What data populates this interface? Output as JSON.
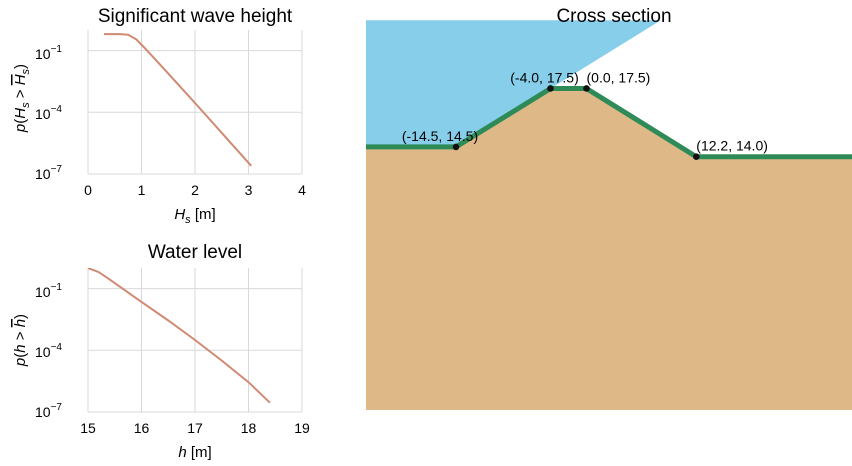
{
  "chart_data": [
    {
      "type": "line",
      "title": "Significant wave height",
      "xlabel": "H_s [m]",
      "ylabel": "p(H_s > Ĥ_s)",
      "xlim": [
        0,
        4
      ],
      "ylim_exp": [
        -7,
        0
      ],
      "yscale": "log",
      "grid": true,
      "x_ticks": [
        "0",
        "1",
        "2",
        "3",
        "4"
      ],
      "y_ticks": [
        "10^-1",
        "10^-4",
        "10^-7"
      ],
      "line_color": "#d08a74",
      "series": [
        {
          "x": [
            0.3,
            0.6,
            0.75,
            0.9,
            1.05,
            1.3,
            1.6,
            2.0,
            2.5,
            3.05
          ],
          "log10_y": [
            -0.2,
            -0.2,
            -0.23,
            -0.45,
            -0.85,
            -1.55,
            -2.4,
            -3.55,
            -5.0,
            -6.6
          ]
        }
      ]
    },
    {
      "type": "line",
      "title": "Water level",
      "xlabel": "h [m]",
      "ylabel": "p(h > h̄)",
      "xlim": [
        15,
        19
      ],
      "ylim_exp": [
        -7,
        0
      ],
      "yscale": "log",
      "grid": true,
      "x_ticks": [
        "15",
        "16",
        "17",
        "18",
        "19"
      ],
      "y_ticks": [
        "10^-1",
        "10^-4",
        "10^-7"
      ],
      "line_color": "#d08a74",
      "series": [
        {
          "x": [
            15.0,
            15.2,
            15.4,
            15.7,
            16.0,
            16.5,
            17.0,
            17.5,
            18.0,
            18.4
          ],
          "log10_y": [
            0.0,
            -0.2,
            -0.55,
            -1.1,
            -1.65,
            -2.55,
            -3.5,
            -4.5,
            -5.55,
            -6.55
          ]
        }
      ]
    },
    {
      "type": "area",
      "title": "Cross section",
      "xlim": [
        -24.5,
        29.5
      ],
      "ylim": [
        1.0,
        20.5
      ],
      "grid": false,
      "water_color": "#87ceeb",
      "soil_color": "#deb887",
      "crest_line_color": "#2e8b57",
      "water_level": 21.0,
      "profile": [
        [
          -24.5,
          14.5
        ],
        [
          -14.5,
          14.5
        ],
        [
          -4.0,
          17.5
        ],
        [
          0.0,
          17.5
        ],
        [
          12.2,
          14.0
        ],
        [
          29.5,
          14.0
        ]
      ],
      "labeled_points": [
        {
          "x": -14.5,
          "y": 14.5,
          "label": "(-14.5, 14.5)"
        },
        {
          "x": -4.0,
          "y": 17.5,
          "label": "(-4.0, 17.5)"
        },
        {
          "x": 0.0,
          "y": 17.5,
          "label": "(0.0, 17.5)"
        },
        {
          "x": 12.2,
          "y": 14.0,
          "label": "(12.2, 14.0)"
        }
      ]
    }
  ]
}
